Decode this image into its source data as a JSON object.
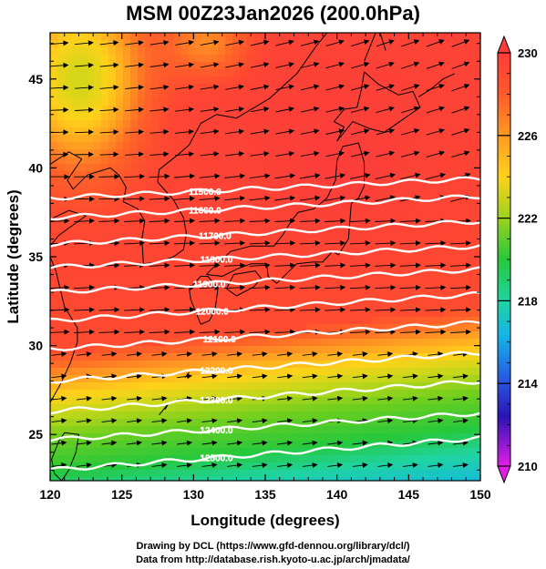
{
  "title": "MSM 00Z23Jan2026 (200.0hPa)",
  "credits": {
    "line1": "Drawing by DCL (https://www.gfd-dennou.org/library/dcl/)",
    "line2": "Data from http://database.rish.kyoto-u.ac.jp/arch/jmadata/"
  },
  "map": {
    "xlabel": "Longitude (degrees)",
    "ylabel": "Latitude  (degrees)",
    "xlim": [
      120,
      150
    ],
    "ylim": [
      22.4,
      47.6
    ],
    "xticks": [
      "120",
      "125",
      "130",
      "135",
      "140",
      "145",
      "150"
    ],
    "yticks": [
      "25",
      "30",
      "35",
      "40",
      "45"
    ],
    "contours": [
      {
        "label": "11500.0",
        "lat_west": 38.3,
        "lat_east": 39.4,
        "label_lon": 130.8
      },
      {
        "label": "11600.0",
        "lat_west": 37.2,
        "lat_east": 38.4,
        "label_lon": 130.8
      },
      {
        "label": "11700.0",
        "lat_west": 35.7,
        "lat_east": 37.0,
        "label_lon": 131.5
      },
      {
        "label": "11800.0",
        "lat_west": 34.4,
        "lat_east": 35.6,
        "label_lon": 131.6
      },
      {
        "label": "11900.0",
        "lat_west": 33.0,
        "lat_east": 34.3,
        "label_lon": 131.1
      },
      {
        "label": "12000.0",
        "lat_west": 31.4,
        "lat_east": 32.9,
        "label_lon": 131.3
      },
      {
        "label": "12100.0",
        "lat_west": 29.8,
        "lat_east": 31.3,
        "label_lon": 131.8
      },
      {
        "label": "12200.0",
        "lat_west": 28.0,
        "lat_east": 29.6,
        "label_lon": 131.6
      },
      {
        "label": "12300.0",
        "lat_west": 26.3,
        "lat_east": 28.0,
        "label_lon": 131.6
      },
      {
        "label": "12400.0",
        "lat_west": 24.7,
        "lat_east": 26.2,
        "label_lon": 131.6
      },
      {
        "label": "12500.0",
        "lat_west": 23.0,
        "lat_east": 24.8,
        "label_lon": 131.6
      }
    ]
  },
  "colorbar": {
    "ticks": [
      "230",
      "226",
      "222",
      "218",
      "214",
      "210"
    ],
    "min": 210,
    "max": 230
  }
}
